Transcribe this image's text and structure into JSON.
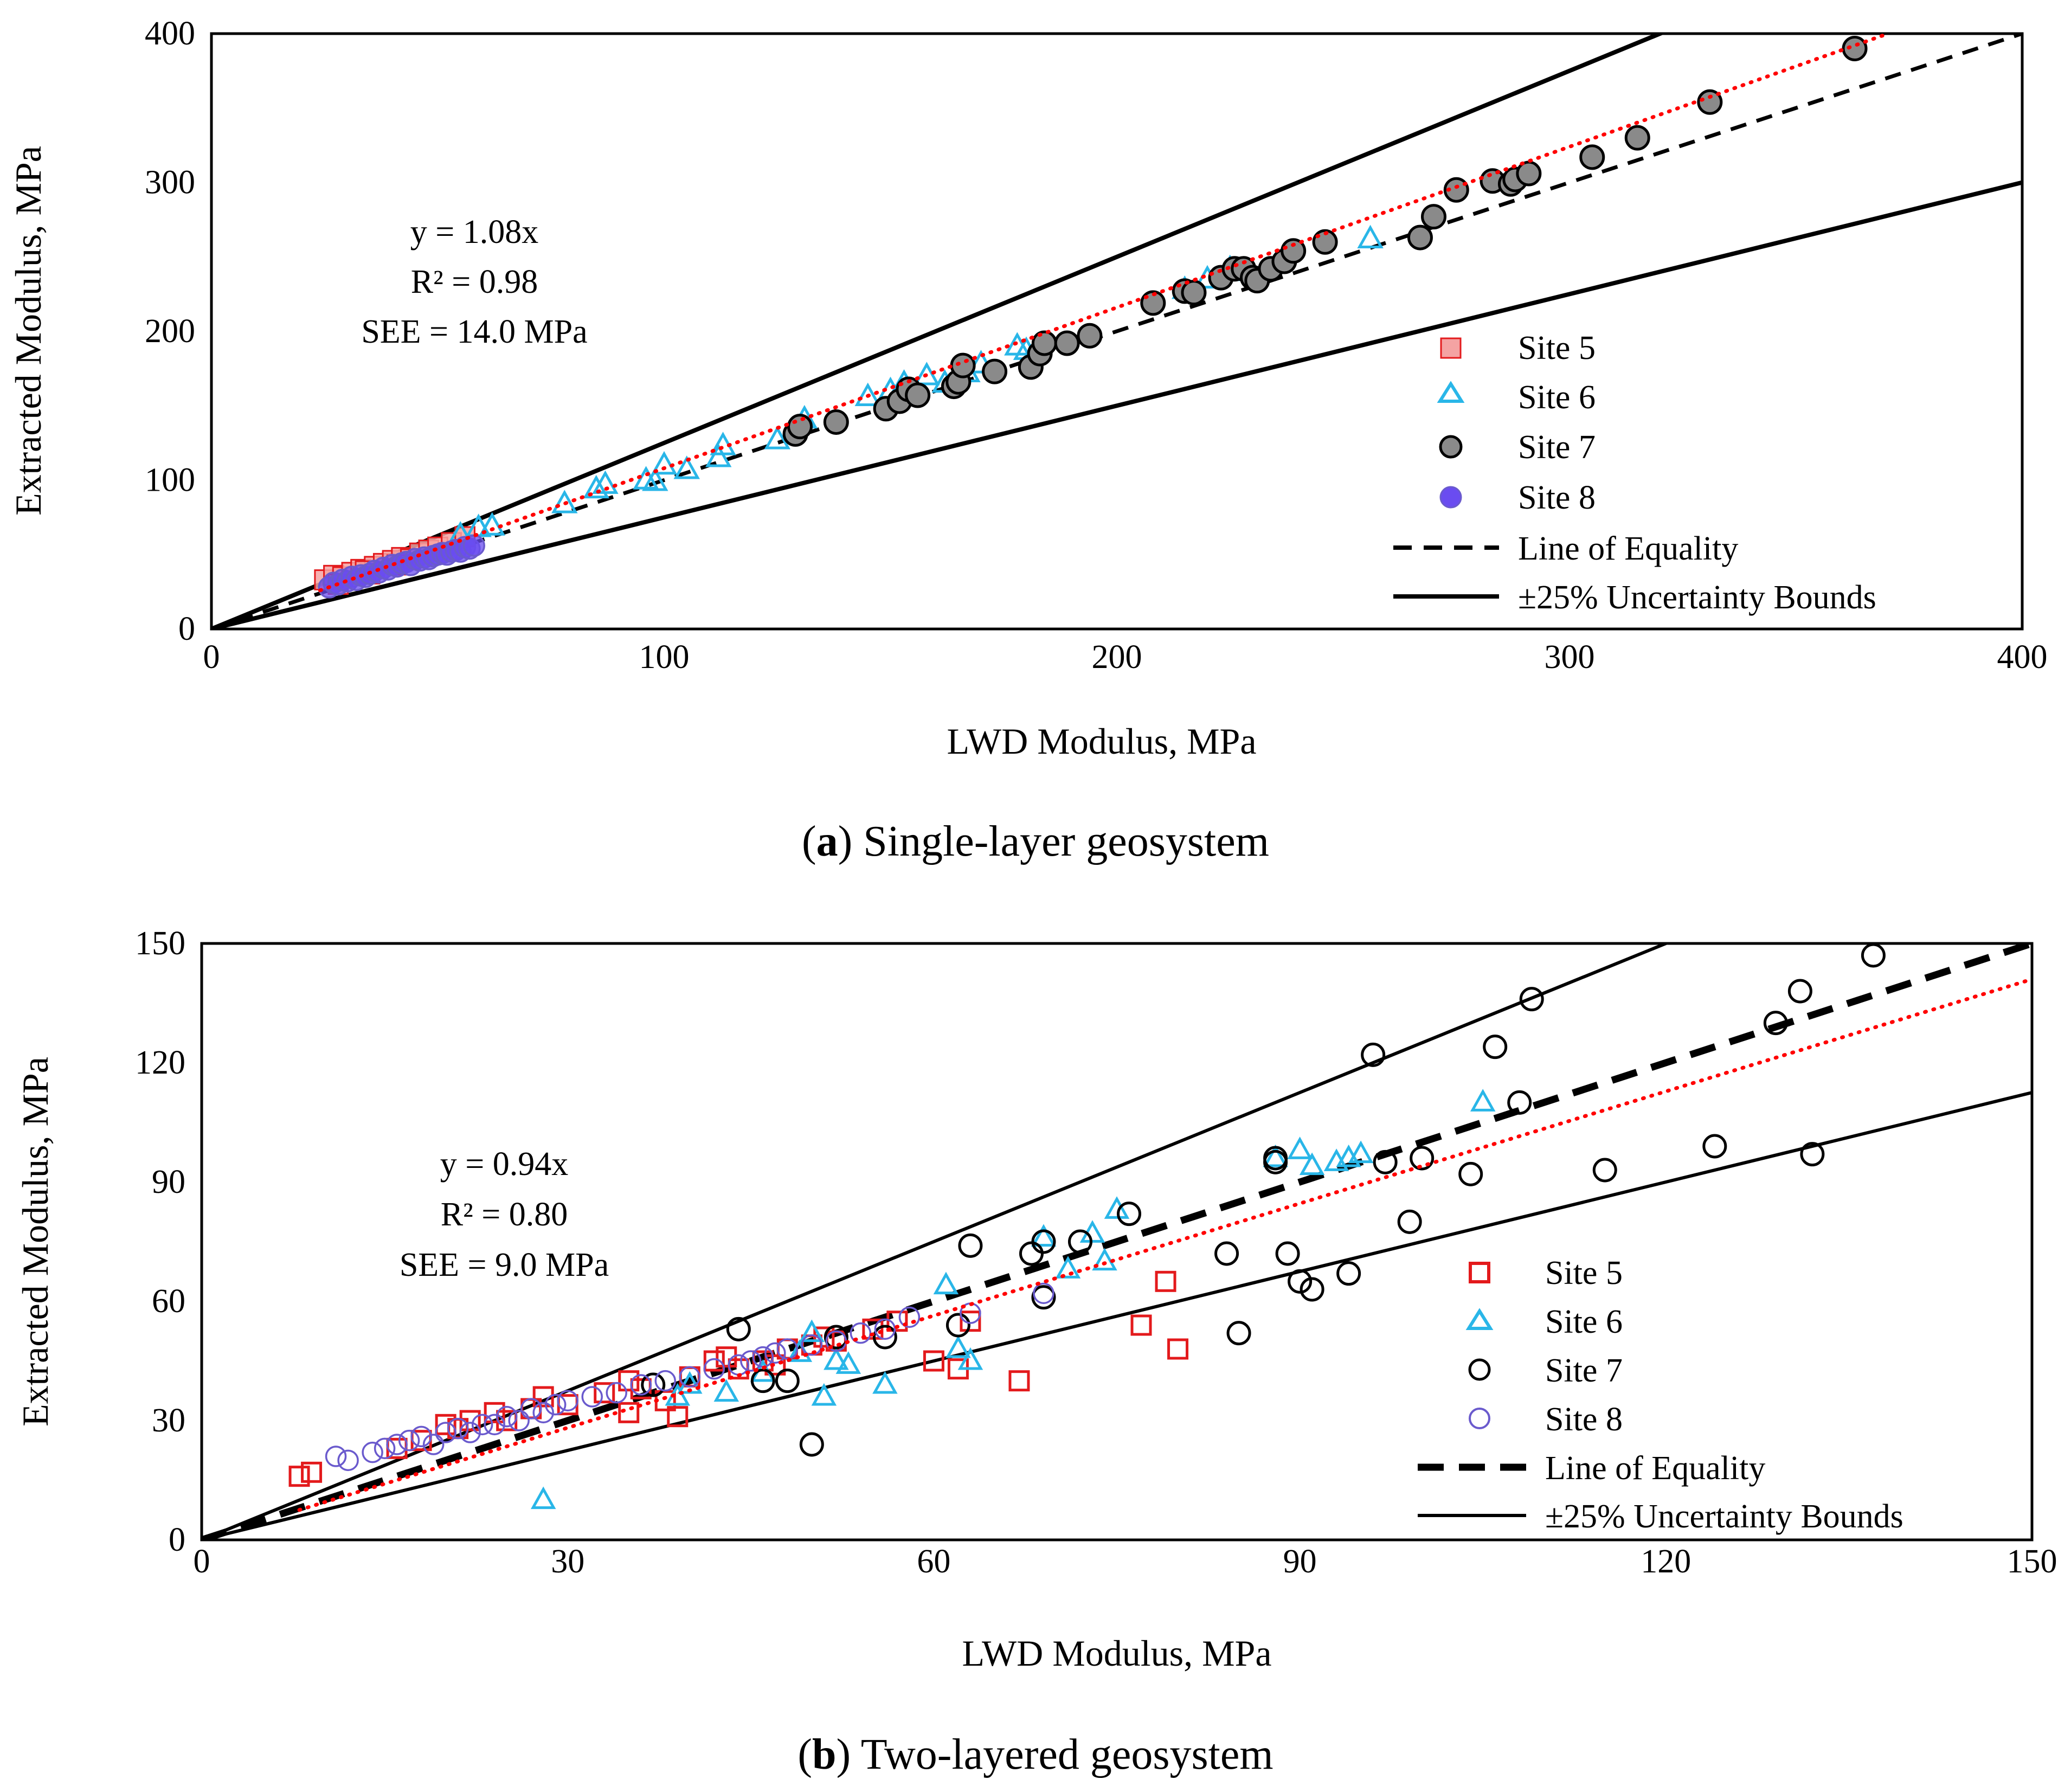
{
  "colors": {
    "site5": "#e31a1c",
    "site5_fill": "#f4a3a3",
    "site6": "#29b6e8",
    "site7": "#000000",
    "site7_fill": "#8a8a8a",
    "site8": "#6a5acd",
    "site8_fill": "#6a4cf0",
    "fit": "#ff0000",
    "bounds": "#000000"
  },
  "chart_data": [
    {
      "type": "scatter",
      "id": "a",
      "caption": {
        "letter": "a",
        "text": "Single-layer geosystem"
      },
      "xlabel": "LWD Modulus, MPa",
      "ylabel": "Extracted Modulus, MPa",
      "xlim": [
        0,
        400
      ],
      "ylim": [
        0,
        400
      ],
      "xticks": [
        0,
        100,
        200,
        300,
        400
      ],
      "yticks": [
        0,
        100,
        200,
        300,
        400
      ],
      "annotation": [
        "y = 1.08x",
        "R² = 0.98",
        "SEE = 14.0 MPa"
      ],
      "fit_slope": 1.08,
      "fit_x_start": 24,
      "bounds": [
        1.25,
        0.75
      ],
      "legend": {
        "site5": "Site 5",
        "site6": "Site 6",
        "site7": "Site 7",
        "site8": "Site 8",
        "equality": "Line of Equality",
        "bounds": "±25% Uncertainty Bounds"
      },
      "series": [
        {
          "name": "Site 5",
          "key": "site5",
          "marker": "square",
          "filled": true,
          "points": [
            [
              25,
              33
            ],
            [
              27,
              36
            ],
            [
              29,
              35
            ],
            [
              31,
              38
            ],
            [
              33,
              40
            ],
            [
              35,
              37
            ],
            [
              36,
              42
            ],
            [
              38,
              44
            ],
            [
              40,
              46
            ],
            [
              42,
              48
            ],
            [
              44,
              47
            ],
            [
              46,
              51
            ],
            [
              48,
              53
            ],
            [
              50,
              55
            ],
            [
              53,
              58
            ],
            [
              56,
              62
            ],
            [
              28,
              30
            ],
            [
              34,
              39
            ],
            [
              41,
              43
            ]
          ]
        },
        {
          "name": "Site 6",
          "key": "site6",
          "marker": "triangle",
          "filled": false,
          "points": [
            [
              55,
              63
            ],
            [
              59,
              68
            ],
            [
              62,
              69
            ],
            [
              78,
              84
            ],
            [
              85,
              94
            ],
            [
              87,
              97
            ],
            [
              96,
              100
            ],
            [
              98,
              99
            ],
            [
              100,
              110
            ],
            [
              105,
              107
            ],
            [
              112,
              115
            ],
            [
              113,
              123
            ],
            [
              125,
              127
            ],
            [
              131,
              141
            ],
            [
              145,
              156
            ],
            [
              150,
              160
            ],
            [
              153,
              165
            ],
            [
              158,
              170
            ],
            [
              162,
              165
            ],
            [
              167,
              172
            ],
            [
              170,
              178
            ],
            [
              178,
              190
            ],
            [
              180,
              187
            ],
            [
              215,
              228
            ],
            [
              220,
              235
            ],
            [
              225,
              242
            ],
            [
              228,
              240
            ],
            [
              256,
              262
            ]
          ]
        },
        {
          "name": "Site 7",
          "key": "site7",
          "marker": "circle",
          "filled": true,
          "points": [
            [
              129,
              131
            ],
            [
              130,
              136
            ],
            [
              138,
              139
            ],
            [
              149,
              148
            ],
            [
              152,
              153
            ],
            [
              154,
              161
            ],
            [
              156,
              157
            ],
            [
              164,
              163
            ],
            [
              165,
              166
            ],
            [
              166,
              177
            ],
            [
              173,
              173
            ],
            [
              181,
              176
            ],
            [
              183,
              185
            ],
            [
              184,
              192
            ],
            [
              189,
              192
            ],
            [
              194,
              197
            ],
            [
              208,
              219
            ],
            [
              215,
              227
            ],
            [
              217,
              226
            ],
            [
              223,
              236
            ],
            [
              226,
              242
            ],
            [
              228,
              242
            ],
            [
              230,
              236
            ],
            [
              231,
              234
            ],
            [
              234,
              242
            ],
            [
              237,
              247
            ],
            [
              239,
              254
            ],
            [
              246,
              260
            ],
            [
              267,
              263
            ],
            [
              270,
              277
            ],
            [
              275,
              295
            ],
            [
              283,
              301
            ],
            [
              287,
              299
            ],
            [
              288,
              302
            ],
            [
              291,
              306
            ],
            [
              305,
              317
            ],
            [
              315,
              330
            ],
            [
              331,
              354
            ],
            [
              363,
              390
            ]
          ]
        },
        {
          "name": "Site 8",
          "key": "site8",
          "marker": "circle",
          "filled": true,
          "points": [
            [
              26,
              28
            ],
            [
              27,
              31
            ],
            [
              28,
              30
            ],
            [
              29,
              33
            ],
            [
              30,
              32
            ],
            [
              31,
              35
            ],
            [
              32,
              33
            ],
            [
              33,
              36
            ],
            [
              34,
              35
            ],
            [
              35,
              37
            ],
            [
              36,
              39
            ],
            [
              37,
              38
            ],
            [
              38,
              41
            ],
            [
              39,
              40
            ],
            [
              40,
              43
            ],
            [
              41,
              42
            ],
            [
              42,
              44
            ],
            [
              43,
              45
            ],
            [
              44,
              43
            ],
            [
              45,
              47
            ],
            [
              46,
              46
            ],
            [
              47,
              48
            ],
            [
              48,
              47
            ],
            [
              49,
              49
            ],
            [
              50,
              50
            ],
            [
              51,
              51
            ],
            [
              52,
              50
            ],
            [
              53,
              52
            ],
            [
              54,
              53
            ],
            [
              55,
              52
            ],
            [
              56,
              55
            ],
            [
              57,
              54
            ],
            [
              58,
              56
            ]
          ]
        }
      ]
    },
    {
      "type": "scatter",
      "id": "b",
      "caption": {
        "letter": "b",
        "text": "Two-layered geosystem"
      },
      "xlabel": "LWD Modulus, MPa",
      "ylabel": "Extracted Modulus, MPa",
      "xlim": [
        0,
        150
      ],
      "ylim": [
        0,
        150
      ],
      "xticks": [
        0,
        30,
        60,
        90,
        120,
        150
      ],
      "yticks": [
        0,
        30,
        60,
        90,
        120,
        150
      ],
      "annotation": [
        "y = 0.94x",
        "R² = 0.80",
        "SEE = 9.0 MPa"
      ],
      "fit_slope": 0.94,
      "fit_x_start": 8,
      "bounds": [
        1.25,
        0.75
      ],
      "legend": {
        "site5": "Site 5",
        "site6": "Site 6",
        "site7": "Site 7",
        "site8": "Site 8",
        "equality": "Line of Equality",
        "bounds": "±25% Uncertainty Bounds"
      },
      "series": [
        {
          "name": "Site 5",
          "key": "site5",
          "marker": "square",
          "filled": false,
          "points": [
            [
              8,
              16
            ],
            [
              9,
              17
            ],
            [
              16,
              23
            ],
            [
              18,
              25
            ],
            [
              20,
              29
            ],
            [
              21,
              28
            ],
            [
              22,
              30
            ],
            [
              24,
              32
            ],
            [
              25,
              30
            ],
            [
              27,
              33
            ],
            [
              28,
              36
            ],
            [
              30,
              34
            ],
            [
              33,
              37
            ],
            [
              35,
              40
            ],
            [
              35,
              32
            ],
            [
              36,
              38
            ],
            [
              38,
              35
            ],
            [
              39,
              31
            ],
            [
              40,
              41
            ],
            [
              42,
              45
            ],
            [
              43,
              46
            ],
            [
              44,
              43
            ],
            [
              46,
              45
            ],
            [
              47,
              44
            ],
            [
              48,
              48
            ],
            [
              50,
              49
            ],
            [
              51,
              51
            ],
            [
              52,
              50
            ],
            [
              55,
              53
            ],
            [
              57,
              55
            ],
            [
              60,
              45
            ],
            [
              62,
              43
            ],
            [
              63,
              55
            ],
            [
              67,
              40
            ],
            [
              77,
              54
            ],
            [
              79,
              65
            ],
            [
              80,
              48
            ]
          ]
        },
        {
          "name": "Site 6",
          "key": "site6",
          "marker": "triangle",
          "filled": false,
          "points": [
            [
              28,
              10
            ],
            [
              39,
              36
            ],
            [
              40,
              39
            ],
            [
              43,
              37
            ],
            [
              46,
              42
            ],
            [
              49,
              47
            ],
            [
              50,
              52
            ],
            [
              51,
              36
            ],
            [
              52,
              45
            ],
            [
              53,
              44
            ],
            [
              56,
              39
            ],
            [
              61,
              64
            ],
            [
              62,
              48
            ],
            [
              63,
              45
            ],
            [
              69,
              76
            ],
            [
              71,
              68
            ],
            [
              73,
              77
            ],
            [
              74,
              70
            ],
            [
              75,
              83
            ],
            [
              88,
              96
            ],
            [
              90,
              98
            ],
            [
              91,
              94
            ],
            [
              93,
              95
            ],
            [
              94,
              96
            ],
            [
              95,
              97
            ],
            [
              105,
              110
            ]
          ]
        },
        {
          "name": "Site 7",
          "key": "site7",
          "marker": "circle",
          "filled": false,
          "points": [
            [
              37,
              39
            ],
            [
              44,
              53
            ],
            [
              46,
              40
            ],
            [
              48,
              40
            ],
            [
              50,
              24
            ],
            [
              52,
              51
            ],
            [
              56,
              51
            ],
            [
              62,
              54
            ],
            [
              63,
              74
            ],
            [
              68,
              72
            ],
            [
              69,
              75
            ],
            [
              69,
              61
            ],
            [
              72,
              75
            ],
            [
              76,
              82
            ],
            [
              84,
              72
            ],
            [
              85,
              52
            ],
            [
              88,
              95
            ],
            [
              88,
              96
            ],
            [
              89,
              72
            ],
            [
              90,
              65
            ],
            [
              91,
              63
            ],
            [
              94,
              67
            ],
            [
              96,
              122
            ],
            [
              97,
              95
            ],
            [
              99,
              80
            ],
            [
              100,
              96
            ],
            [
              104,
              92
            ],
            [
              106,
              124
            ],
            [
              108,
              110
            ],
            [
              109,
              136
            ],
            [
              115,
              93
            ],
            [
              124,
              99
            ],
            [
              129,
              130
            ],
            [
              131,
              138
            ],
            [
              132,
              97
            ],
            [
              137,
              147
            ]
          ]
        },
        {
          "name": "Site 8",
          "key": "site8",
          "marker": "circle",
          "filled": false,
          "points": [
            [
              11,
              21
            ],
            [
              12,
              20
            ],
            [
              14,
              22
            ],
            [
              15,
              23
            ],
            [
              16,
              24
            ],
            [
              17,
              25
            ],
            [
              18,
              26
            ],
            [
              19,
              24
            ],
            [
              20,
              27
            ],
            [
              21,
              28
            ],
            [
              22,
              27
            ],
            [
              23,
              29
            ],
            [
              24,
              29
            ],
            [
              25,
              31
            ],
            [
              26,
              30
            ],
            [
              27,
              33
            ],
            [
              28,
              32
            ],
            [
              29,
              34
            ],
            [
              30,
              35
            ],
            [
              32,
              36
            ],
            [
              34,
              37
            ],
            [
              36,
              39
            ],
            [
              38,
              40
            ],
            [
              40,
              41
            ],
            [
              42,
              43
            ],
            [
              44,
              44
            ],
            [
              45,
              45
            ],
            [
              46,
              46
            ],
            [
              47,
              47
            ],
            [
              48,
              48
            ],
            [
              50,
              49
            ],
            [
              52,
              50
            ],
            [
              54,
              52
            ],
            [
              56,
              53
            ],
            [
              58,
              56
            ],
            [
              63,
              57
            ],
            [
              69,
              62
            ]
          ]
        }
      ]
    }
  ]
}
